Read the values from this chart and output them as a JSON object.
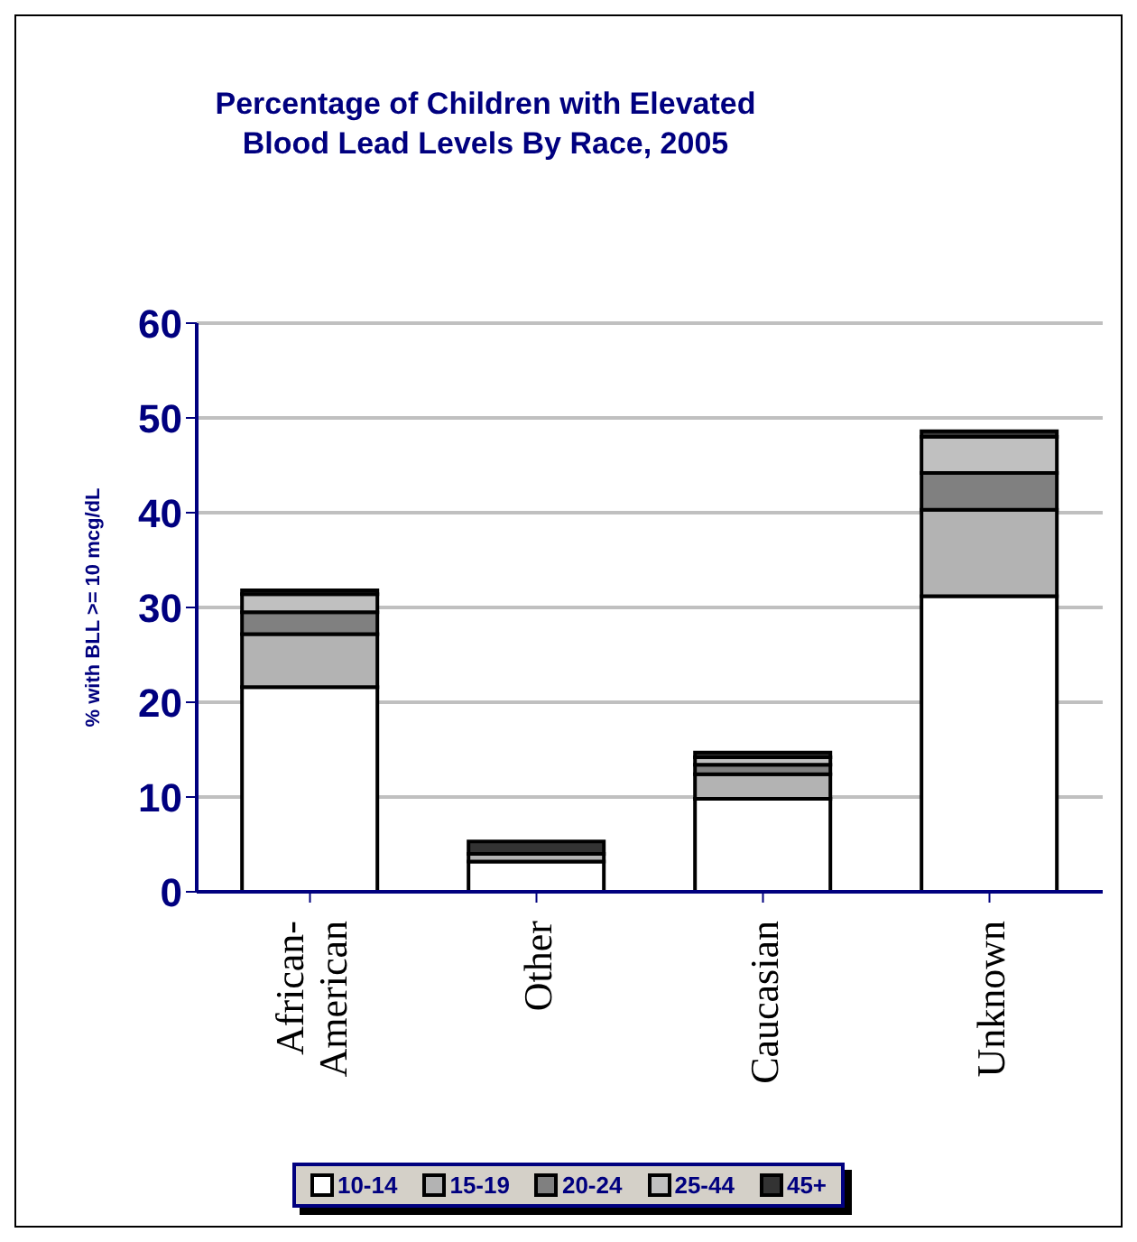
{
  "chart_data": {
    "type": "bar",
    "title": "Percentage of Children with Elevated Blood Lead Levels By Race, 2005",
    "ylabel": "% with BLL >= 10 mcg/dL",
    "categories": [
      "African-American",
      "Other",
      "Caucasian",
      "Unknown"
    ],
    "stacked": true,
    "series": [
      {
        "name": "10-14",
        "color": "#ffffff",
        "values": [
          21.6,
          3.2,
          9.8,
          31.2
        ]
      },
      {
        "name": "15-19",
        "color": "#b3b3b3",
        "values": [
          5.6,
          0.8,
          2.6,
          9.1
        ]
      },
      {
        "name": "20-24",
        "color": "#808080",
        "values": [
          2.3,
          null,
          1.0,
          3.9
        ]
      },
      {
        "name": "25-44",
        "color": "#c0c0c0",
        "values": [
          1.9,
          null,
          0.8,
          3.8
        ]
      },
      {
        "name": "45+",
        "color": "#333333",
        "values": [
          0.4,
          1.3,
          0.5,
          0.6
        ]
      }
    ],
    "ylim": [
      0,
      60
    ],
    "yticks": [
      0,
      10,
      20,
      30,
      40,
      50,
      60
    ],
    "grid": "y",
    "legend": "bottom"
  }
}
